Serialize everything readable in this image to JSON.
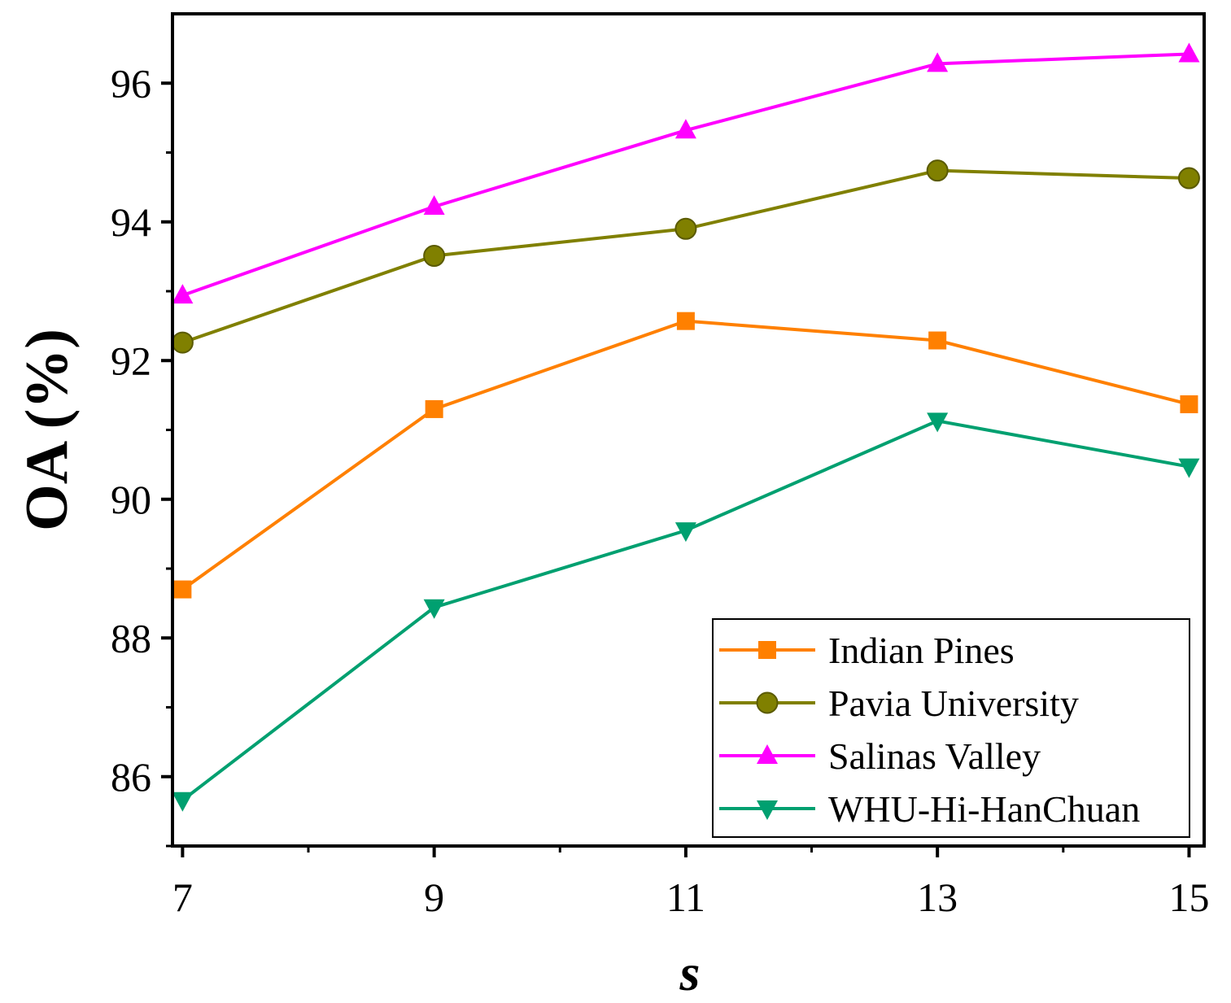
{
  "chart_data": {
    "type": "line",
    "title": "",
    "xlabel": "s",
    "ylabel": "OA (%)",
    "x": [
      7,
      9,
      11,
      13,
      15
    ],
    "xlim": [
      6.92,
      15.12
    ],
    "ylim": [
      85,
      97
    ],
    "xticks": [
      "7",
      "9",
      "11",
      "13",
      "15"
    ],
    "yticks": [
      "86",
      "88",
      "90",
      "92",
      "94",
      "96"
    ],
    "grid": false,
    "legend_position": "bottom-right",
    "series": [
      {
        "name": "Indian Pines",
        "color": "#FF8000",
        "marker": "square",
        "values": [
          88.7,
          91.3,
          92.57,
          92.29,
          91.37
        ]
      },
      {
        "name": "Pavia University",
        "color": "#808000",
        "marker": "circle",
        "values": [
          92.26,
          93.51,
          93.9,
          94.74,
          94.63
        ]
      },
      {
        "name": "Salinas Valley",
        "color": "#FF00FF",
        "marker": "triangle-up",
        "values": [
          92.94,
          94.22,
          95.32,
          96.28,
          96.42
        ]
      },
      {
        "name": "WHU-Hi-HanChuan",
        "color": "#00A070",
        "marker": "triangle-down",
        "values": [
          85.66,
          88.44,
          89.55,
          91.13,
          90.47
        ]
      }
    ]
  }
}
